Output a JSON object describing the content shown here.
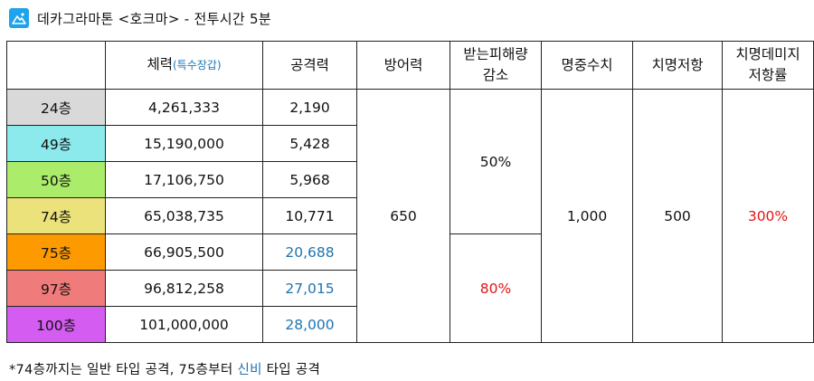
{
  "header": {
    "title": "데카그라마톤 <호크마> - 전투시간 5분",
    "logo_icon": "mountain-image-icon",
    "logo_color": "#1ea3ec"
  },
  "table": {
    "columns": {
      "floor": "",
      "hp": "체력",
      "hp_special": "(특수장갑)",
      "attack": "공격력",
      "defense": "방어력",
      "damage_reduction_1": "받는피해량",
      "damage_reduction_2": "감소",
      "accuracy": "명중수치",
      "crit_resist": "치명저항",
      "crit_dmg_resist_1": "치명데미지",
      "crit_dmg_resist_2": "저항률"
    },
    "rows": [
      {
        "floor": "24층",
        "color": "#d9d9d9",
        "hp": "4,261,333",
        "attack": "2,190",
        "attack_color": "#111111"
      },
      {
        "floor": "49층",
        "color": "#8deaec",
        "hp": "15,190,000",
        "attack": "5,428",
        "attack_color": "#111111"
      },
      {
        "floor": "50층",
        "color": "#abec6a",
        "hp": "17,106,750",
        "attack": "5,968",
        "attack_color": "#111111"
      },
      {
        "floor": "74층",
        "color": "#ece27c",
        "hp": "65,038,735",
        "attack": "10,771",
        "attack_color": "#111111"
      },
      {
        "floor": "75층",
        "color": "#fd9a00",
        "hp": "66,905,500",
        "attack": "20,688",
        "attack_color": "#1f73b0"
      },
      {
        "floor": "97층",
        "color": "#f07b7b",
        "hp": "96,812,258",
        "attack": "27,015",
        "attack_color": "#1f73b0"
      },
      {
        "floor": "100층",
        "color": "#d45cf0",
        "hp": "101,000,000",
        "attack": "28,000",
        "attack_color": "#1f73b0"
      }
    ],
    "defense": "650",
    "damage_reduction_low": "50%",
    "damage_reduction_high": "80%",
    "accuracy": "1,000",
    "crit_resist": "500",
    "crit_dmg_resist": "300%"
  },
  "footnote": {
    "prefix": "*74층까지는 일반 타입 공격, 75층부터 ",
    "highlight": "신비",
    "suffix": " 타입 공격",
    "highlight_color": "#1f73b0"
  }
}
